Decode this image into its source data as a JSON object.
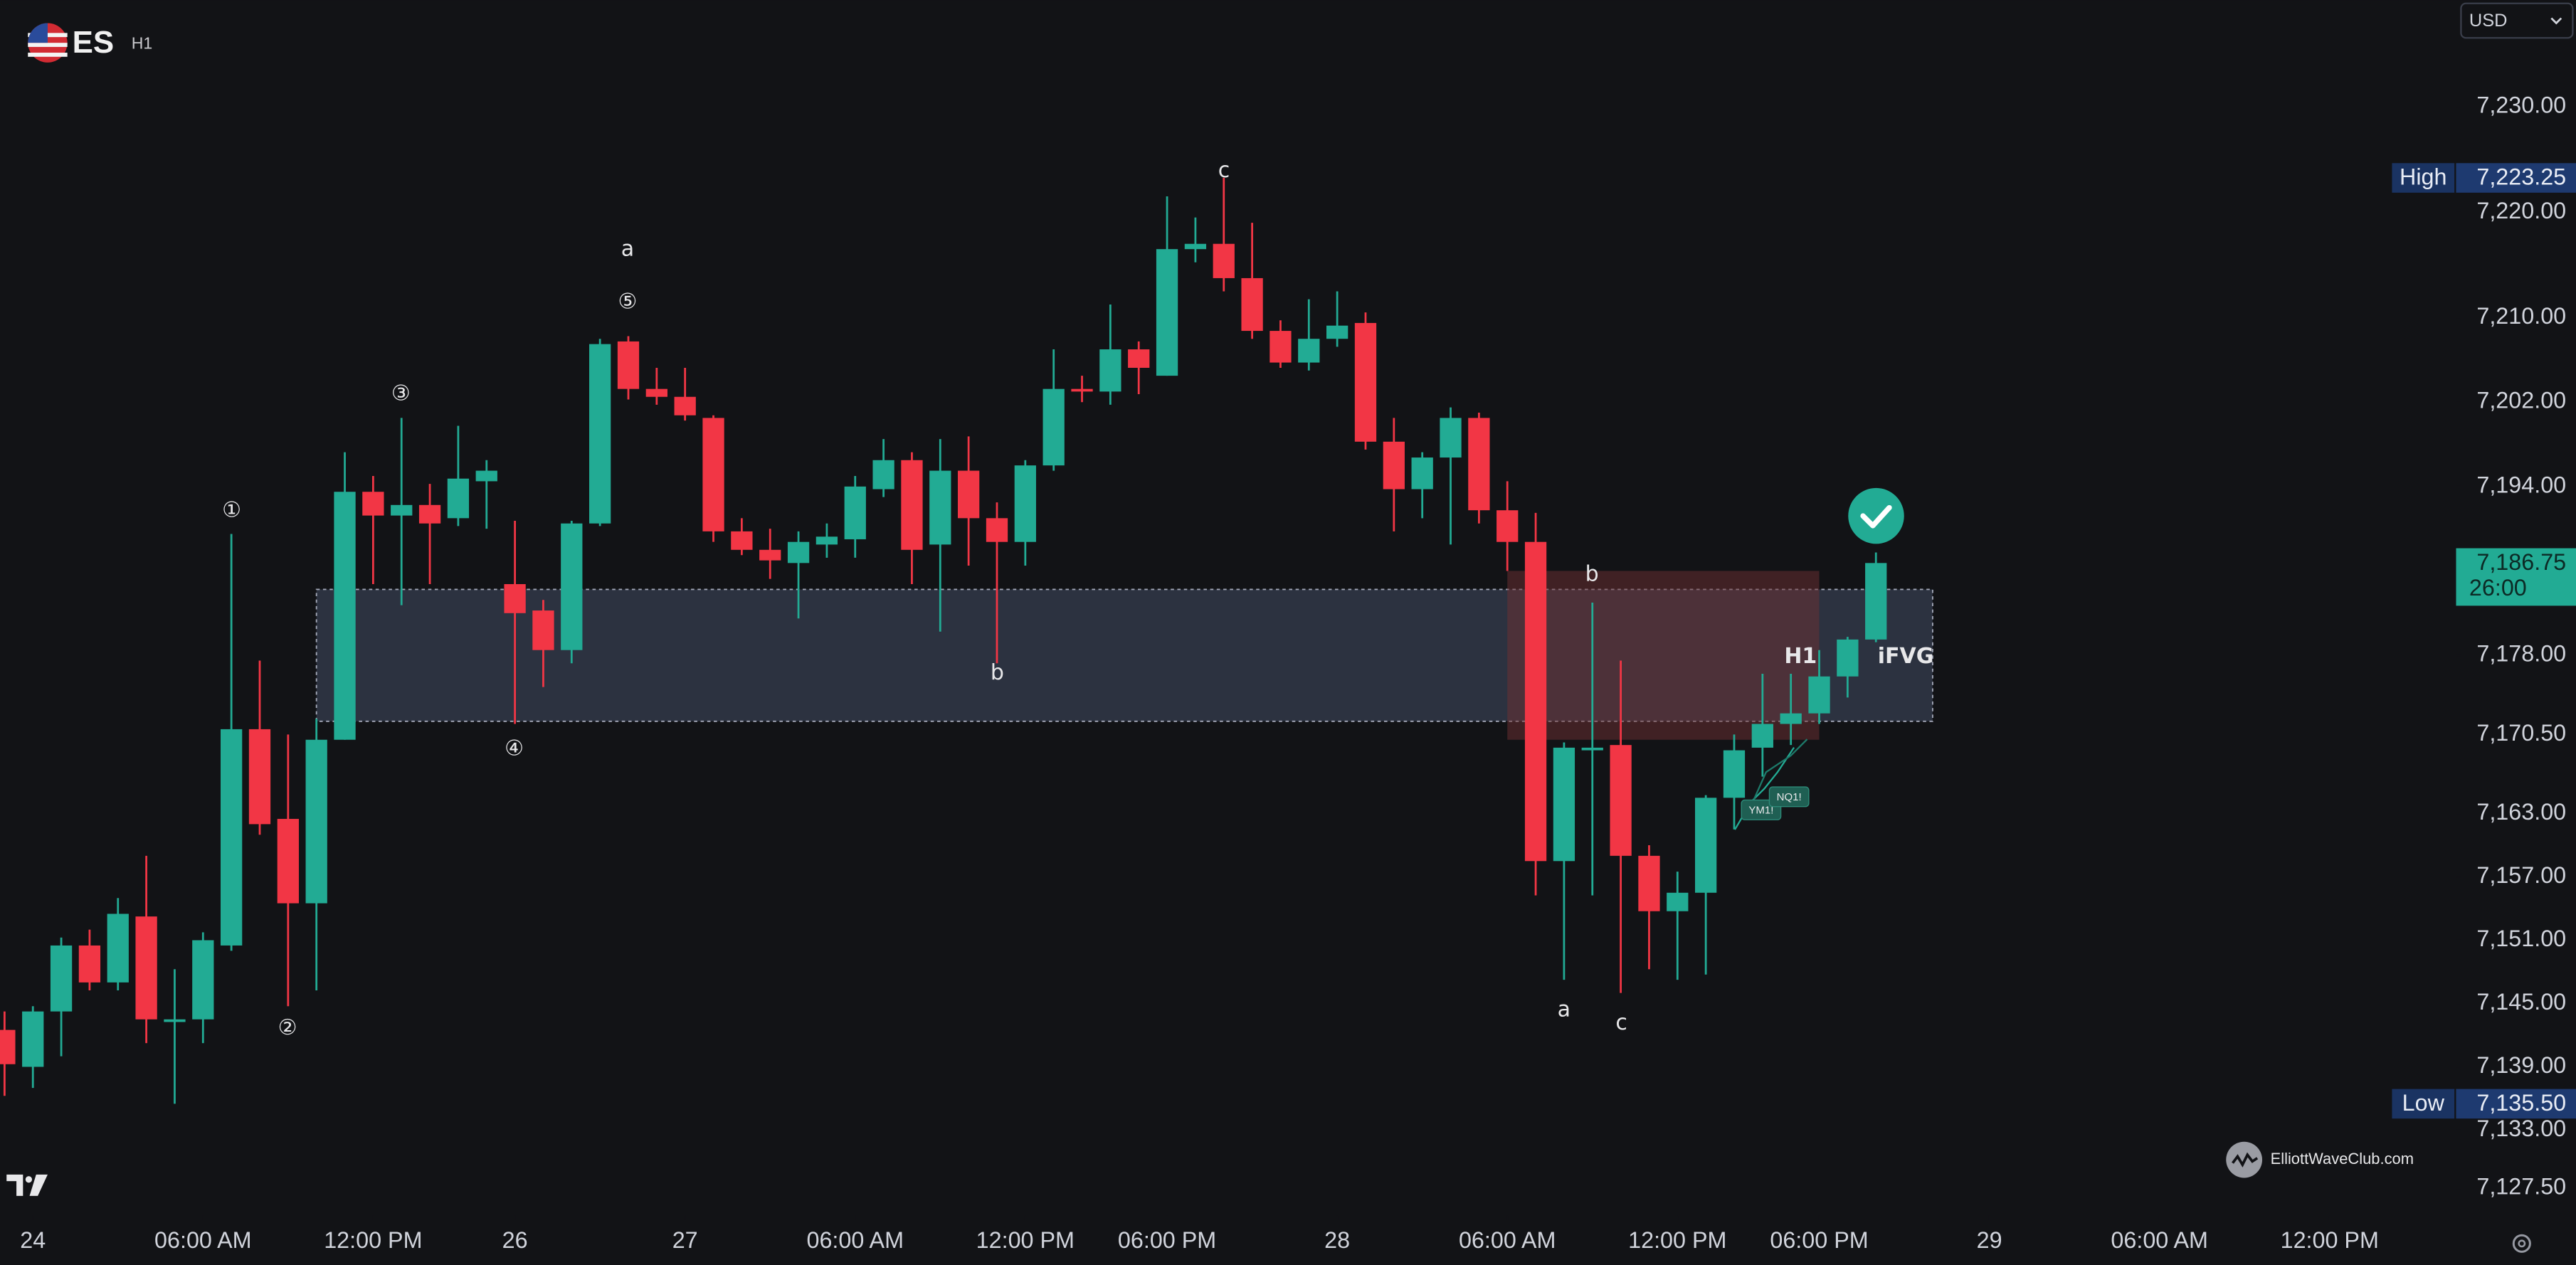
{
  "chart_data": {
    "type": "candlestick",
    "symbol": "ES",
    "interval": "H1",
    "currency": "USD",
    "watermark": "ElliottWaveClub.com",
    "up_color": "#22ab94",
    "down_color": "#f23645",
    "x": [
      -1,
      0,
      1,
      2,
      3,
      4,
      5,
      6,
      7,
      8,
      9,
      10,
      11,
      12,
      13,
      14,
      15,
      16,
      17,
      18,
      19,
      20,
      21,
      22,
      23,
      24,
      25,
      26,
      27,
      28,
      29,
      30,
      31,
      32,
      33,
      34,
      35,
      36,
      37,
      38,
      39,
      40,
      41,
      42,
      43,
      44,
      45,
      46,
      47,
      48,
      49,
      50,
      51,
      52,
      53,
      54,
      55,
      56,
      57,
      58,
      59,
      60,
      61,
      62,
      63,
      64,
      65
    ],
    "open": [
      7142.5,
      7139,
      7144.25,
      7150.5,
      7147,
      7153.25,
      7143.25,
      7143.5,
      7150.5,
      7171,
      7162.5,
      7154.5,
      7170,
      7193.5,
      7191.25,
      7192.25,
      7191,
      7194.5,
      7184.75,
      7182.25,
      7178.5,
      7190.5,
      7207.75,
      7203.25,
      7202.5,
      7200.5,
      7189.75,
      7188,
      7186.75,
      7188.5,
      7189,
      7193.75,
      7196.5,
      7188.5,
      7195.5,
      7191,
      7188.75,
      7196,
      7203.25,
      7203,
      7207,
      7204.5,
      7216.5,
      7217,
      7213.75,
      7208.75,
      7205.75,
      7208,
      7209.5,
      7198.25,
      7193.75,
      7196.75,
      7200.5,
      7191.75,
      7188.75,
      7158.5,
      7169,
      7169.5,
      7159,
      7153.75,
      7155.5,
      7164.5,
      7169.25,
      7171.5,
      7172.5,
      7176,
      7179.5
    ],
    "high": [
      7144.25,
      7144.75,
      7151.25,
      7152,
      7155,
      7159,
      7148.25,
      7151.75,
      7189.5,
      7177.5,
      7170.5,
      7172,
      7197.25,
      7195,
      7200.5,
      7194.25,
      7199.75,
      7196.5,
      7190.75,
      7183.25,
      7190.75,
      7208,
      7208.25,
      7205.25,
      7205.25,
      7200.75,
      7191,
      7190,
      7189.75,
      7190.5,
      7195,
      7198.5,
      7197.25,
      7198.5,
      7198.75,
      7192.5,
      7196.5,
      7207,
      7204.5,
      7211.25,
      7207.75,
      7221.5,
      7219.5,
      7223.25,
      7219,
      7209.75,
      7211.75,
      7212.5,
      7210.5,
      7200.5,
      7197.25,
      7201.5,
      7201,
      7194.5,
      7191.5,
      7169.75,
      7183,
      7177.5,
      7160,
      7157.5,
      7164.75,
      7170.5,
      7176.25,
      7176.25,
      7178.5,
      7179.75,
      7187.75
    ],
    "low": [
      7136.25,
      7137,
      7140,
      7146.25,
      7146.25,
      7141.25,
      7135.5,
      7141.25,
      7150,
      7161,
      7144.75,
      7146.25,
      7170,
      7184.75,
      7182.75,
      7184.75,
      7190.25,
      7190,
      7171.5,
      7175,
      7177.25,
      7190.25,
      7202.25,
      7201.75,
      7200.25,
      7188.75,
      7187.5,
      7185.25,
      7181.5,
      7187.25,
      7187.25,
      7193,
      7184.75,
      7180.25,
      7186.5,
      7177.25,
      7186.5,
      7195.5,
      7202,
      7201.75,
      7202.75,
      7204.5,
      7215.25,
      7212.5,
      7208,
      7205.25,
      7205,
      7207.25,
      7197.5,
      7189.75,
      7191,
      7188.5,
      7190.5,
      7186,
      7155.25,
      7147.25,
      7155.25,
      7146,
      7148.25,
      7147.25,
      7147.75,
      7161.5,
      7166.5,
      7169.5,
      7171.5,
      7174,
      7179.25
    ],
    "close": [
      7139.25,
      7144.25,
      7150.5,
      7147,
      7153.5,
      7143.5,
      7143.5,
      7151,
      7171,
      7162,
      7154.5,
      7170,
      7193.5,
      7191.25,
      7192.25,
      7190.5,
      7194.75,
      7195.5,
      7182,
      7178.5,
      7190.5,
      7207.5,
      7203.25,
      7202.5,
      7200.75,
      7189.75,
      7188,
      7187,
      7188.75,
      7189.25,
      7194,
      7196.5,
      7188,
      7195.5,
      7191,
      7188.75,
      7196,
      7203.25,
      7203,
      7207,
      7205.25,
      7216.5,
      7217,
      7213.75,
      7208.75,
      7205.75,
      7208,
      7209.25,
      7198.25,
      7193.75,
      7196.75,
      7200.5,
      7191.75,
      7188.75,
      7158.5,
      7169.25,
      7169.25,
      7159,
      7153.75,
      7155.5,
      7164.5,
      7169,
      7171.5,
      7172.5,
      7176,
      7179.5,
      7186.75
    ],
    "xlim": [
      -1.16,
      85.46
    ],
    "ylim": [
      7124.9,
      7240.1
    ],
    "xticks": [
      {
        "value": 0,
        "label": "24"
      },
      {
        "value": 6,
        "label": "06:00 AM"
      },
      {
        "value": 12,
        "label": "12:00 PM"
      },
      {
        "value": 17,
        "label": "26"
      },
      {
        "value": 23,
        "label": "27"
      },
      {
        "value": 29,
        "label": "06:00 AM"
      },
      {
        "value": 35,
        "label": "12:00 PM"
      },
      {
        "value": 40,
        "label": "06:00 PM"
      },
      {
        "value": 46,
        "label": "28"
      },
      {
        "value": 52,
        "label": "06:00 AM"
      },
      {
        "value": 58,
        "label": "12:00 PM"
      },
      {
        "value": 63,
        "label": "06:00 PM"
      },
      {
        "value": 69,
        "label": "29"
      },
      {
        "value": 75,
        "label": "06:00 AM"
      },
      {
        "value": 81,
        "label": "12:00 PM"
      }
    ],
    "yticks": [
      {
        "value": 7230,
        "label": "7,230.00"
      },
      {
        "value": 7220,
        "label": "7,220.00"
      },
      {
        "value": 7210,
        "label": "7,210.00"
      },
      {
        "value": 7202,
        "label": "7,202.00"
      },
      {
        "value": 7194,
        "label": "7,194.00"
      },
      {
        "value": 7178,
        "label": "7,178.00"
      },
      {
        "value": 7170.5,
        "label": "7,170.50"
      },
      {
        "value": 7163,
        "label": "7,163.00"
      },
      {
        "value": 7157,
        "label": "7,157.00"
      },
      {
        "value": 7151,
        "label": "7,151.00"
      },
      {
        "value": 7145,
        "label": "7,145.00"
      },
      {
        "value": 7139,
        "label": "7,139.00"
      },
      {
        "value": 7133,
        "label": "7,133.00"
      },
      {
        "value": 7127.5,
        "label": "7,127.50"
      }
    ],
    "price_markers": [
      {
        "name": "High",
        "value": 7223.25,
        "label": "7,223.25"
      },
      {
        "name": "Low",
        "value": 7135.5,
        "label": "7,135.50"
      }
    ],
    "current_price": {
      "value": 7186.75,
      "label": "7,186.75",
      "countdown": "26:00",
      "color": "#22ab94"
    },
    "zones": [
      {
        "from": 10,
        "to": 67,
        "low": 7171.75,
        "high": 7184.25,
        "color": "#4d5873"
      },
      {
        "from": 52,
        "to": 63,
        "low": 7170,
        "high": 7186,
        "color": "#6e2f31"
      }
    ],
    "annotations": [
      {
        "text": "①"
      },
      {
        "text": "②"
      },
      {
        "text": "③"
      },
      {
        "text": "④"
      },
      {
        "text": "⑤"
      },
      {
        "text": "a"
      },
      {
        "text": "b"
      },
      {
        "text": "c"
      },
      {
        "text": "b"
      },
      {
        "text": "a"
      },
      {
        "text": "c"
      },
      {
        "text": "H1",
        "color": "#f06b72"
      },
      {
        "text": "iFVG",
        "color": "#9db8e6"
      }
    ],
    "tags": [
      "YM1!",
      "NQ1!"
    ]
  }
}
